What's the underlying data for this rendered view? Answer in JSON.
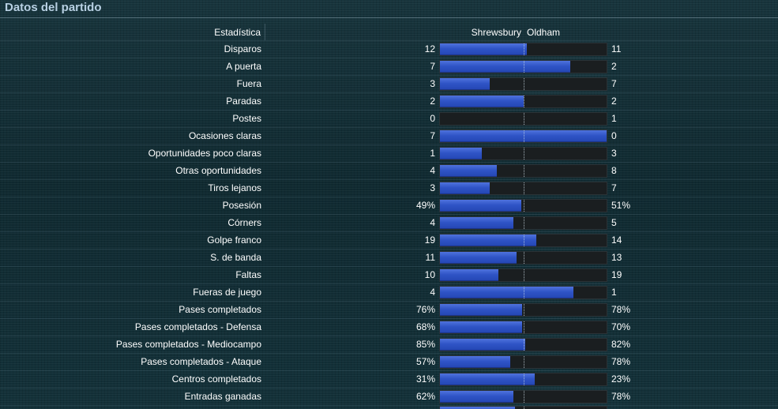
{
  "title": "Datos del partido",
  "table": {
    "stat_header": "Estadística",
    "home_team": "Shrewsbury",
    "away_team": "Oldham",
    "rows": [
      {
        "label": "Disparos",
        "home": "12",
        "away": "11",
        "home_share": 0.52
      },
      {
        "label": "A puerta",
        "home": "7",
        "away": "2",
        "home_share": 0.78
      },
      {
        "label": "Fuera",
        "home": "3",
        "away": "7",
        "home_share": 0.3
      },
      {
        "label": "Paradas",
        "home": "2",
        "away": "2",
        "home_share": 0.5
      },
      {
        "label": "Postes",
        "home": "0",
        "away": "1",
        "home_share": 0.0
      },
      {
        "label": "Ocasiones claras",
        "home": "7",
        "away": "0",
        "home_share": 1.0
      },
      {
        "label": "Oportunidades poco claras",
        "home": "1",
        "away": "3",
        "home_share": 0.25
      },
      {
        "label": "Otras oportunidades",
        "home": "4",
        "away": "8",
        "home_share": 0.34
      },
      {
        "label": "Tiros lejanos",
        "home": "3",
        "away": "7",
        "home_share": 0.3
      },
      {
        "label": "Posesión",
        "home": "49%",
        "away": "51%",
        "home_share": 0.49
      },
      {
        "label": "Córners",
        "home": "4",
        "away": "5",
        "home_share": 0.44
      },
      {
        "label": "Golpe franco",
        "home": "19",
        "away": "14",
        "home_share": 0.58
      },
      {
        "label": "S. de banda",
        "home": "11",
        "away": "13",
        "home_share": 0.46
      },
      {
        "label": "Faltas",
        "home": "10",
        "away": "19",
        "home_share": 0.35
      },
      {
        "label": "Fueras de juego",
        "home": "4",
        "away": "1",
        "home_share": 0.8
      },
      {
        "label": "Pases completados",
        "home": "76%",
        "away": "78%",
        "home_share": 0.495
      },
      {
        "label": "Pases completados - Defensa",
        "home": "68%",
        "away": "70%",
        "home_share": 0.495
      },
      {
        "label": "Pases completados - Mediocampo",
        "home": "85%",
        "away": "82%",
        "home_share": 0.51
      },
      {
        "label": "Pases completados - Ataque",
        "home": "57%",
        "away": "78%",
        "home_share": 0.42
      },
      {
        "label": "Centros completados",
        "home": "31%",
        "away": "23%",
        "home_share": 0.57
      },
      {
        "label": "Entradas ganadas",
        "home": "62%",
        "away": "78%",
        "home_share": 0.44
      }
    ],
    "partial_row_home_share": 0.45
  },
  "colors": {
    "bar_home": "#2f54c6",
    "bar_track": "#1a1e20",
    "title": "#b8d0e3",
    "background": "#123038"
  }
}
